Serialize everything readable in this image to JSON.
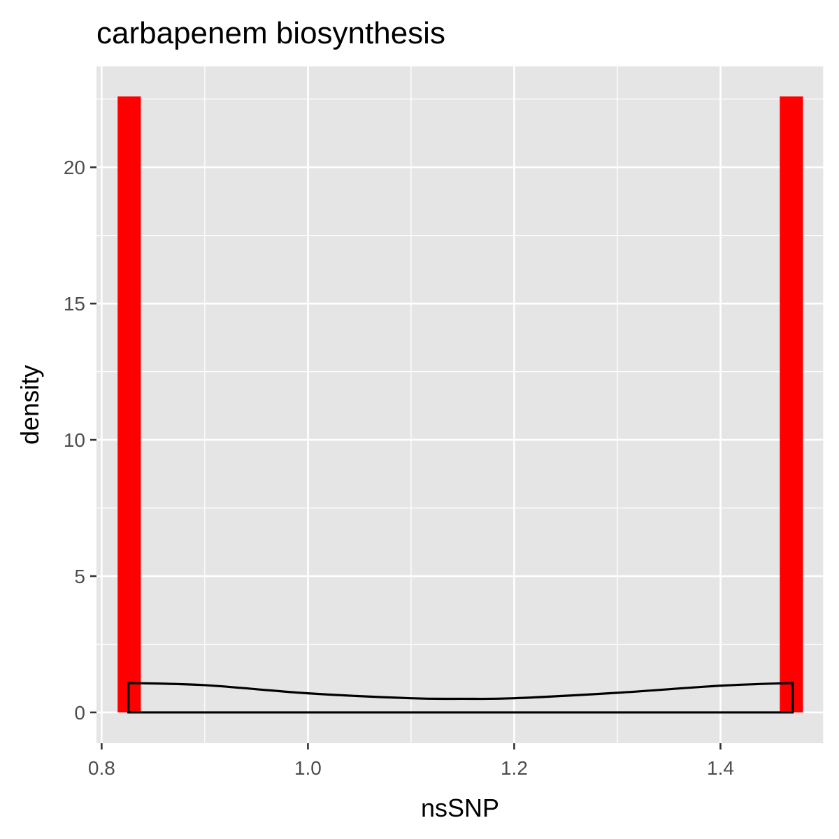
{
  "chart_data": {
    "type": "bar",
    "title": "carbapenem biosynthesis",
    "xlabel": "nsSNP",
    "ylabel": "density",
    "xlim": [
      0.795,
      1.5
    ],
    "ylim": [
      -1.13,
      23.7
    ],
    "x_ticks": [
      0.8,
      1.0,
      1.2,
      1.4
    ],
    "x_tick_labels": [
      "0.8",
      "1.0",
      "1.2",
      "1.4"
    ],
    "y_ticks": [
      0,
      5,
      10,
      15,
      20
    ],
    "y_tick_labels": [
      "0",
      "5",
      "10",
      "15",
      "20"
    ],
    "grid": true,
    "legend": "none",
    "panel_background": "#e5e5e5",
    "bar_color": "#ff0000",
    "histogram": [
      {
        "x_start": 0.8155,
        "x_end": 0.838,
        "density": 22.6
      },
      {
        "x_start": 1.4575,
        "x_end": 1.48,
        "density": 22.6
      }
    ],
    "density_curve": {
      "color": "#000000",
      "x": [
        0.826,
        0.9,
        1.0,
        1.1,
        1.15,
        1.2,
        1.3,
        1.4,
        1.47
      ],
      "y": [
        1.08,
        1.0,
        0.7,
        0.52,
        0.5,
        0.52,
        0.72,
        0.98,
        1.08
      ]
    }
  }
}
